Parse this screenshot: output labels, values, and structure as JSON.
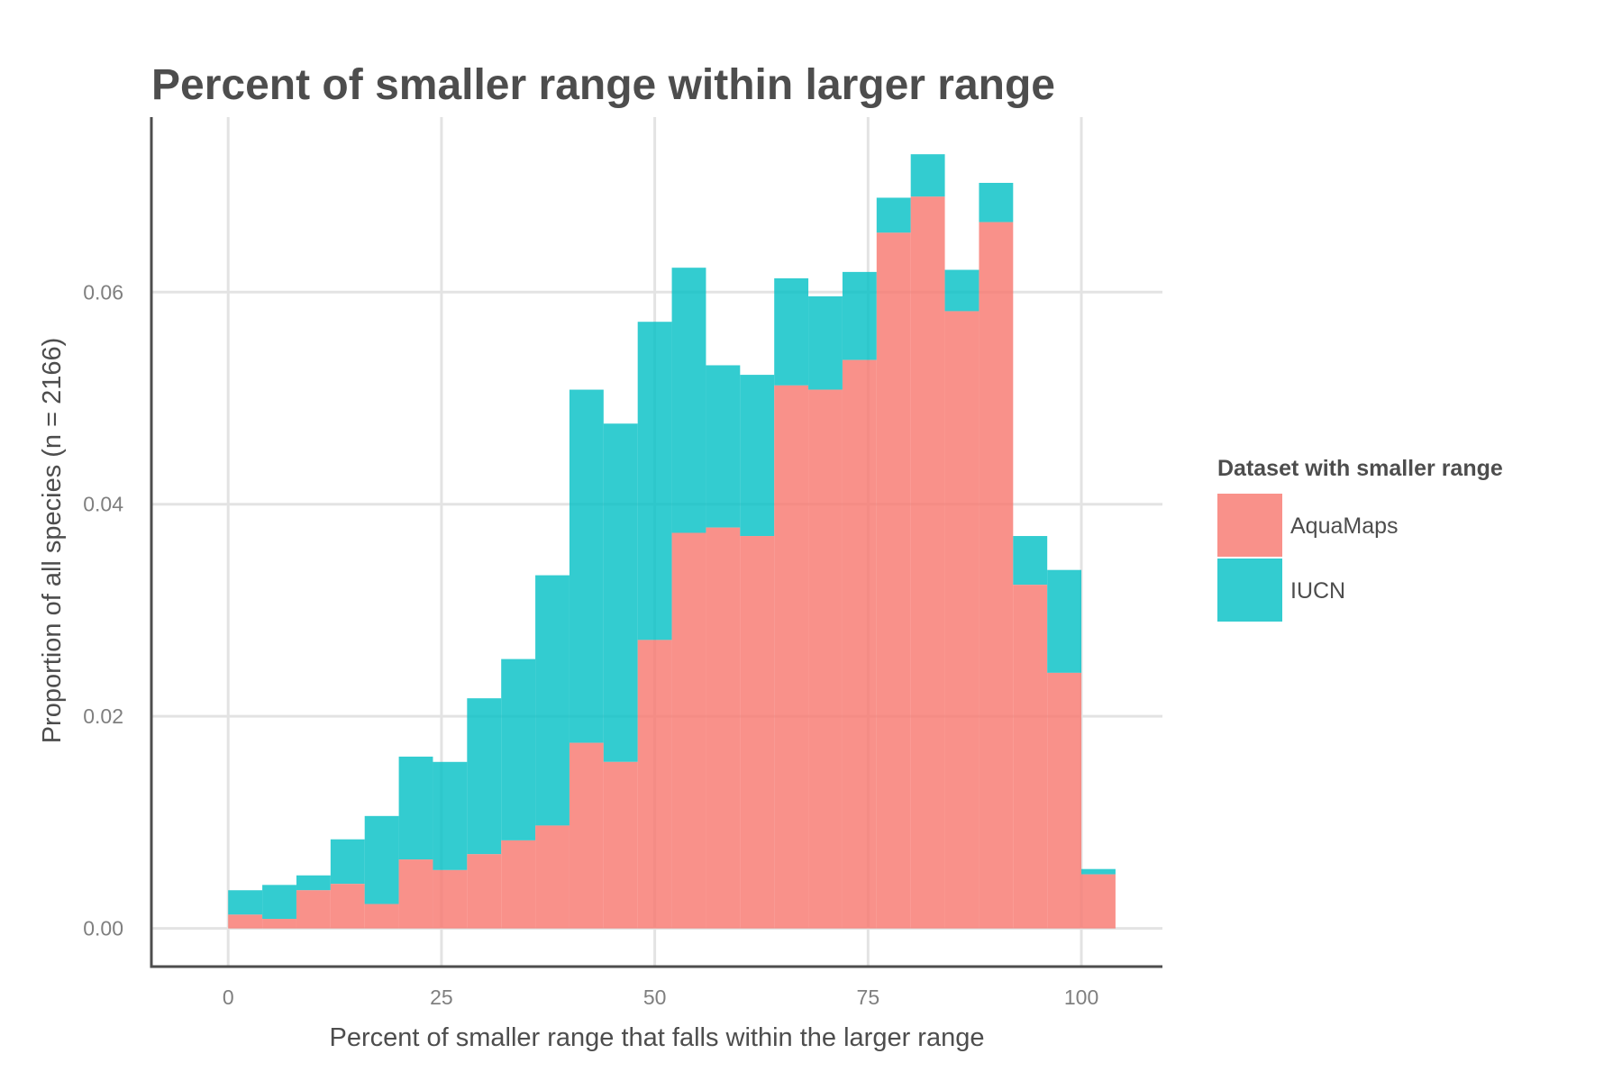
{
  "chart_data": {
    "type": "bar",
    "subtype": "stacked-histogram",
    "title": "Percent of smaller range within larger range",
    "xlabel": "Percent of smaller range that falls within the larger range",
    "ylabel": "Proportion of all species (n = 2166)",
    "xlim": [
      -9,
      109.5
    ],
    "ylim": [
      -0.0036,
      0.0765
    ],
    "x_ticks": [
      0,
      25,
      50,
      75,
      100
    ],
    "x_tick_labels": [
      "0",
      "25",
      "50",
      "75",
      "100"
    ],
    "y_ticks": [
      0,
      0.02,
      0.04,
      0.06
    ],
    "y_tick_labels": [
      "0.00",
      "0.02",
      "0.04",
      "0.06"
    ],
    "grid": true,
    "bin_width": 4,
    "bin_starts": [
      0,
      4,
      8,
      12,
      16,
      20,
      24,
      28,
      32,
      36,
      40,
      44,
      48,
      52,
      56,
      60,
      64,
      68,
      72,
      76,
      80,
      84,
      88,
      92,
      96,
      100
    ],
    "series": [
      {
        "name": "AquaMaps",
        "color": "#F8766D",
        "values": [
          0.0013,
          0.0009,
          0.0036,
          0.0042,
          0.0023,
          0.0065,
          0.0055,
          0.007,
          0.0083,
          0.0097,
          0.0175,
          0.0157,
          0.0272,
          0.0373,
          0.0378,
          0.037,
          0.0512,
          0.0508,
          0.0536,
          0.0656,
          0.069,
          0.0582,
          0.0666,
          0.0324,
          0.0241,
          0.0051
        ]
      },
      {
        "name": "IUCN",
        "color": "#00BFC4",
        "values": [
          0.0023,
          0.0032,
          0.0014,
          0.0042,
          0.0083,
          0.0097,
          0.0102,
          0.0147,
          0.0171,
          0.0236,
          0.0333,
          0.0319,
          0.03,
          0.025,
          0.0153,
          0.0152,
          0.0101,
          0.0088,
          0.0083,
          0.0033,
          0.004,
          0.0039,
          0.0037,
          0.0046,
          0.0097,
          0.0005
        ]
      }
    ],
    "legend": {
      "title": "Dataset with smaller range",
      "position": "right"
    }
  }
}
